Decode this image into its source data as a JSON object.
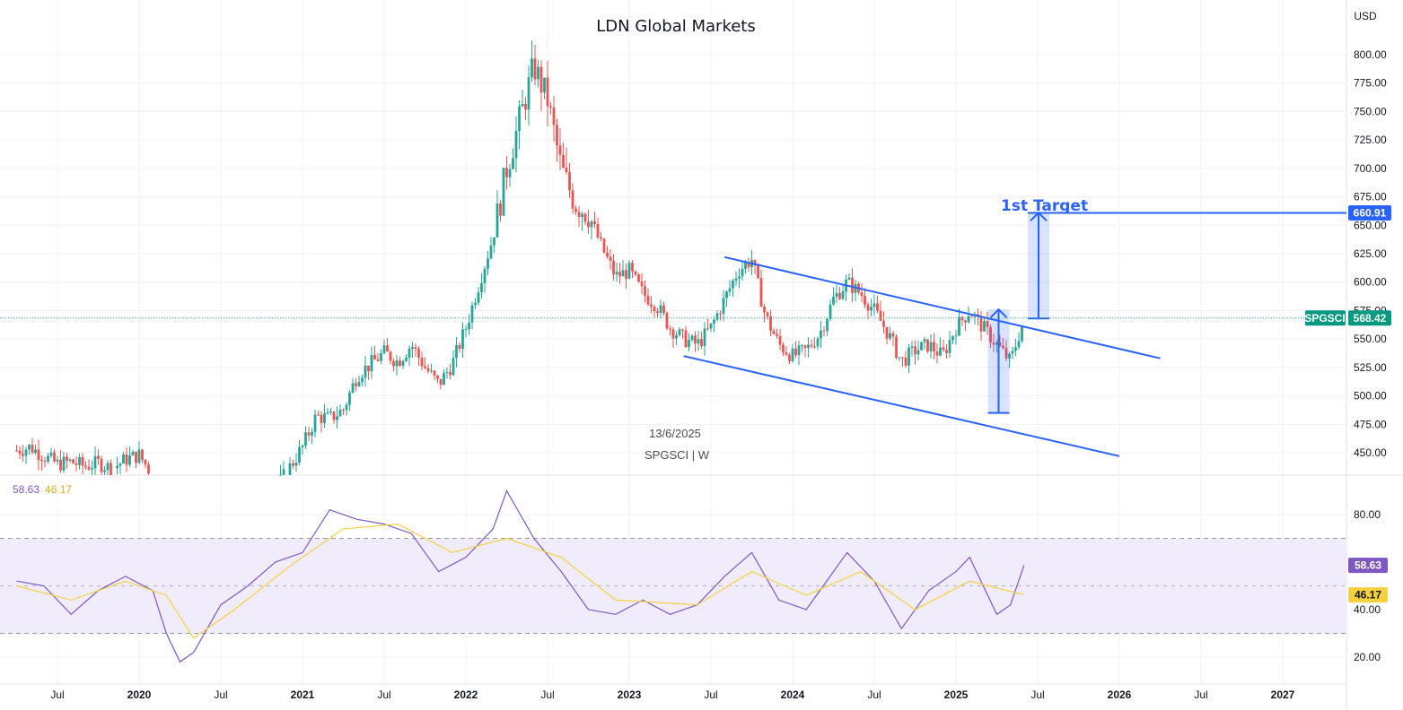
{
  "chart_data": [
    {
      "type": "candlestick",
      "title": "LDN Global Markets",
      "symbol": "SPGSCI",
      "interval": "W",
      "date_label": "13/6/2025",
      "currency": "USD",
      "ylim": [
        435,
        845
      ],
      "y_ticks": [
        "800.00",
        "775.00",
        "750.00",
        "725.00",
        "700.00",
        "675.00",
        "650.00",
        "625.00",
        "600.00",
        "575.00",
        "550.00",
        "525.00",
        "500.00",
        "475.00",
        "450.00"
      ],
      "x_ticks": [
        "Jul",
        "2020",
        "Jul",
        "2021",
        "Jul",
        "2022",
        "Jul",
        "2023",
        "Jul",
        "2024",
        "Jul",
        "2025",
        "Jul",
        "2026",
        "Jul",
        "2027"
      ],
      "last_price": 568.42,
      "last_price_label": "568.42",
      "target_price": 660.91,
      "target_price_label": "660.91",
      "target_text": "1st Target",
      "channel": {
        "upper": [
          [
            "2023-08",
            622
          ],
          [
            "2026-04",
            533
          ]
        ],
        "lower": [
          [
            "2023-05",
            535
          ],
          [
            "2026-01",
            447
          ]
        ]
      },
      "measured_move": {
        "from": 485,
        "to": 576,
        "projected_from": 568,
        "projected_to": 661
      },
      "path_points": [
        [
          "2019-04",
          452
        ],
        [
          "2019-05",
          455
        ],
        [
          "2019-06",
          447
        ],
        [
          "2019-07",
          440
        ],
        [
          "2019-08",
          442
        ],
        [
          "2019-09",
          438
        ],
        [
          "2019-10",
          441
        ],
        [
          "2019-11",
          436
        ],
        [
          "2019-12",
          444
        ],
        [
          "2020-01",
          448
        ],
        [
          "2020-02",
          430
        ],
        [
          "2020-03",
          380
        ],
        [
          "2020-04",
          360
        ],
        [
          "2020-05",
          370
        ],
        [
          "2020-06",
          385
        ],
        [
          "2020-07",
          392
        ],
        [
          "2020-08",
          400
        ],
        [
          "2020-09",
          396
        ],
        [
          "2020-10",
          400
        ],
        [
          "2020-11",
          418
        ],
        [
          "2020-12",
          436
        ],
        [
          "2021-01",
          455
        ],
        [
          "2021-02",
          482
        ],
        [
          "2021-03",
          480
        ],
        [
          "2021-04",
          488
        ],
        [
          "2021-05",
          518
        ],
        [
          "2021-06",
          528
        ],
        [
          "2021-07",
          538
        ],
        [
          "2021-08",
          530
        ],
        [
          "2021-09",
          545
        ],
        [
          "2021-10",
          525
        ],
        [
          "2021-11",
          510
        ],
        [
          "2021-12",
          528
        ],
        [
          "2022-01",
          560
        ],
        [
          "2022-02",
          600
        ],
        [
          "2022-03",
          640
        ],
        [
          "2022-04",
          700
        ],
        [
          "2022-05",
          745
        ],
        [
          "2022-06",
          790
        ],
        [
          "2022-07",
          760
        ],
        [
          "2022-08",
          700
        ],
        [
          "2022-09",
          670
        ],
        [
          "2022-10",
          660
        ],
        [
          "2022-11",
          630
        ],
        [
          "2022-12",
          605
        ],
        [
          "2023-01",
          610
        ],
        [
          "2023-02",
          590
        ],
        [
          "2023-03",
          580
        ],
        [
          "2023-04",
          560
        ],
        [
          "2023-05",
          550
        ],
        [
          "2023-06",
          545
        ],
        [
          "2023-07",
          560
        ],
        [
          "2023-08",
          585
        ],
        [
          "2023-09",
          610
        ],
        [
          "2023-10",
          620
        ],
        [
          "2023-11",
          570
        ],
        [
          "2023-12",
          545
        ],
        [
          "2024-01",
          535
        ],
        [
          "2024-02",
          540
        ],
        [
          "2024-03",
          555
        ],
        [
          "2024-04",
          585
        ],
        [
          "2024-05",
          600
        ],
        [
          "2024-06",
          590
        ],
        [
          "2024-07",
          575
        ],
        [
          "2024-08",
          555
        ],
        [
          "2024-09",
          530
        ],
        [
          "2024-10",
          540
        ],
        [
          "2024-11",
          545
        ],
        [
          "2024-12",
          535
        ],
        [
          "2025-01",
          560
        ],
        [
          "2025-02",
          575
        ],
        [
          "2025-03",
          560
        ],
        [
          "2025-04",
          545
        ],
        [
          "2025-05",
          530
        ],
        [
          "2025-06",
          568
        ]
      ]
    },
    {
      "type": "line",
      "title": "",
      "ylim": [
        15,
        92
      ],
      "y_ticks": [
        "80.00",
        "40.00",
        "20.00"
      ],
      "y_ticks_hidden": [
        "60.00"
      ],
      "band": [
        30,
        70
      ],
      "midline": 50,
      "series": [
        {
          "color": "#7e57c2",
          "value_label": "58.63",
          "last": 58.63,
          "values": [
            [
              "2019-04",
              52
            ],
            [
              "2019-06",
              50
            ],
            [
              "2019-08",
              38
            ],
            [
              "2019-10",
              48
            ],
            [
              "2019-12",
              54
            ],
            [
              "2020-02",
              48
            ],
            [
              "2020-03",
              30
            ],
            [
              "2020-04",
              18
            ],
            [
              "2020-05",
              22
            ],
            [
              "2020-07",
              42
            ],
            [
              "2020-09",
              50
            ],
            [
              "2020-11",
              60
            ],
            [
              "2021-01",
              64
            ],
            [
              "2021-03",
              82
            ],
            [
              "2021-05",
              78
            ],
            [
              "2021-07",
              76
            ],
            [
              "2021-09",
              72
            ],
            [
              "2021-11",
              56
            ],
            [
              "2022-01",
              62
            ],
            [
              "2022-03",
              74
            ],
            [
              "2022-04",
              90
            ],
            [
              "2022-06",
              70
            ],
            [
              "2022-08",
              56
            ],
            [
              "2022-10",
              40
            ],
            [
              "2022-12",
              38
            ],
            [
              "2023-02",
              44
            ],
            [
              "2023-04",
              38
            ],
            [
              "2023-06",
              42
            ],
            [
              "2023-08",
              54
            ],
            [
              "2023-10",
              64
            ],
            [
              "2023-12",
              44
            ],
            [
              "2024-02",
              40
            ],
            [
              "2024-04",
              56
            ],
            [
              "2024-05",
              64
            ],
            [
              "2024-07",
              52
            ],
            [
              "2024-09",
              32
            ],
            [
              "2024-11",
              48
            ],
            [
              "2025-01",
              56
            ],
            [
              "2025-02",
              62
            ],
            [
              "2025-04",
              38
            ],
            [
              "2025-05",
              42
            ],
            [
              "2025-06",
              58.63
            ]
          ]
        },
        {
          "color": "#f5d142",
          "value_label": "46.17",
          "last": 46.17,
          "values": [
            [
              "2019-04",
              50
            ],
            [
              "2019-08",
              44
            ],
            [
              "2019-12",
              52
            ],
            [
              "2020-03",
              46
            ],
            [
              "2020-05",
              28
            ],
            [
              "2020-08",
              40
            ],
            [
              "2020-12",
              58
            ],
            [
              "2021-04",
              74
            ],
            [
              "2021-08",
              76
            ],
            [
              "2021-12",
              64
            ],
            [
              "2022-04",
              70
            ],
            [
              "2022-08",
              62
            ],
            [
              "2022-12",
              44
            ],
            [
              "2023-06",
              42
            ],
            [
              "2023-10",
              56
            ],
            [
              "2024-02",
              46
            ],
            [
              "2024-06",
              56
            ],
            [
              "2024-10",
              40
            ],
            [
              "2025-02",
              52
            ],
            [
              "2025-06",
              46.17
            ]
          ]
        }
      ],
      "legend": [
        "58.63",
        "46.17"
      ]
    }
  ],
  "colors": {
    "up": "#26a69a",
    "down": "#ef5350",
    "accent": "#2962ff",
    "rsi": "#7e57c2",
    "ma": "#f5d142",
    "band_fill": "#f1ecfb"
  }
}
